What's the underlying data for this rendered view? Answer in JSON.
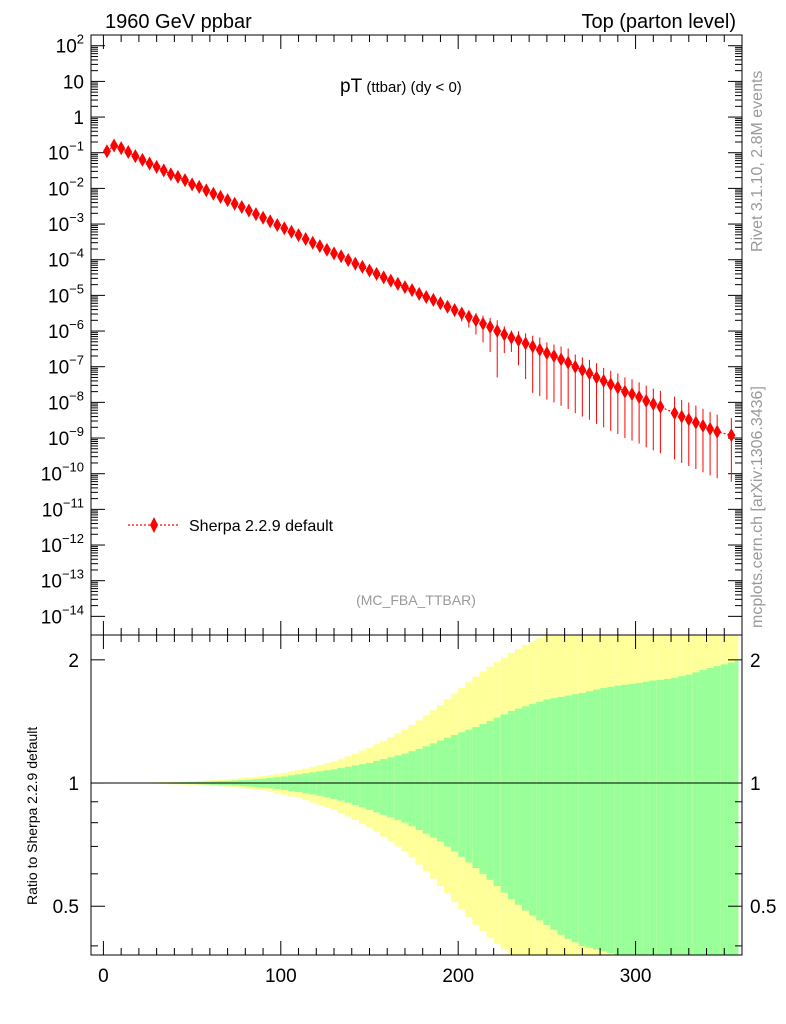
{
  "header": {
    "left": "1960 GeV ppbar",
    "right": "Top (parton level)"
  },
  "side_text": {
    "rivet": "Rivet 3.1.10,  2.8M events",
    "mcplots": "mcplots.cern.ch [arXiv:1306.3436]"
  },
  "main_title": {
    "main": "pT",
    "sub": " (ttbar)  (dy < 0)"
  },
  "analysis_tag": "(MC_FBA_TTBAR)",
  "ratio_ylabel": "Ratio to Sherpa 2.2.9 default",
  "colors": {
    "series": "#ff0000",
    "band_inner": "#99ff99",
    "band_outer": "#ffff99",
    "axis": "#000000",
    "side_text": "#999999"
  },
  "chart_data": [
    {
      "type": "line",
      "panel": "main",
      "yscale": "log",
      "xlim": [
        -7,
        360
      ],
      "ylim": [
        3e-15,
        200
      ],
      "y_tick_labels": [
        "10^-14",
        "10^-13",
        "10^-12",
        "10^-11",
        "10^-10",
        "10^-9",
        "10^-8",
        "10^-7",
        "10^-6",
        "10^-5",
        "10^-4",
        "10^-3",
        "10^-2",
        "10^-1",
        "1",
        "10",
        "10^2"
      ],
      "legend_position": "middle-left",
      "series": [
        {
          "name": "Sherpa 2.2.9 default",
          "marker": "diamond",
          "linestyle": "dotted",
          "x": [
            2,
            6,
            10,
            14,
            18,
            22,
            26,
            30,
            34,
            38,
            42,
            46,
            50,
            54,
            58,
            62,
            66,
            70,
            74,
            78,
            82,
            86,
            90,
            94,
            98,
            102,
            106,
            110,
            114,
            118,
            122,
            126,
            130,
            134,
            138,
            142,
            146,
            150,
            154,
            158,
            162,
            166,
            170,
            174,
            178,
            182,
            186,
            190,
            194,
            198,
            202,
            206,
            210,
            214,
            218,
            222,
            226,
            230,
            234,
            238,
            242,
            246,
            250,
            254,
            258,
            262,
            266,
            270,
            274,
            278,
            282,
            286,
            290,
            294,
            298,
            302,
            306,
            310,
            314,
            322,
            326,
            330,
            334,
            338,
            342,
            346,
            354
          ],
          "y": [
            0.11,
            0.16,
            0.135,
            0.105,
            0.08,
            0.063,
            0.05,
            0.04,
            0.032,
            0.025,
            0.021,
            0.017,
            0.013,
            0.011,
            0.0088,
            0.0071,
            0.0058,
            0.0047,
            0.0037,
            0.003,
            0.0024,
            0.0019,
            0.0015,
            0.0012,
            0.00094,
            0.00076,
            0.00061,
            0.00049,
            0.00038,
            0.0003,
            0.00024,
            0.00019,
            0.00015,
            0.000125,
            9.8e-05,
            7.8e-05,
            6.3e-05,
            5e-05,
            4e-05,
            3.2e-05,
            2.6e-05,
            2.1e-05,
            1.7e-05,
            1.4e-05,
            1.1e-05,
            9e-06,
            7.5e-06,
            6e-06,
            4.8e-06,
            3.9e-06,
            3.1e-06,
            2.5e-06,
            2e-06,
            1.6e-06,
            1.3e-06,
            1e-06,
            8e-07,
            6.5e-07,
            5.5e-07,
            4.5e-07,
            3.7e-07,
            3e-07,
            2.4e-07,
            2e-07,
            1.6e-07,
            1.3e-07,
            1e-07,
            8e-08,
            6.5e-08,
            5e-08,
            4e-08,
            3.2e-08,
            2.6e-08,
            2e-08,
            1.7e-08,
            1.4e-08,
            1.1e-08,
            9e-09,
            7.5e-09,
            5e-09,
            4e-09,
            3.3e-09,
            2.7e-09,
            2.2e-09,
            1.8e-09,
            1.5e-09,
            1.2e-09
          ],
          "yerr_frac": [
            0.04,
            0.04,
            0.04,
            0.04,
            0.04,
            0.04,
            0.04,
            0.04,
            0.04,
            0.04,
            0.04,
            0.04,
            0.04,
            0.04,
            0.04,
            0.05,
            0.05,
            0.05,
            0.05,
            0.05,
            0.05,
            0.05,
            0.06,
            0.06,
            0.06,
            0.06,
            0.07,
            0.07,
            0.07,
            0.08,
            0.08,
            0.08,
            0.09,
            0.09,
            0.1,
            0.1,
            0.11,
            0.12,
            0.12,
            0.13,
            0.14,
            0.15,
            0.16,
            0.17,
            0.18,
            0.2,
            0.22,
            0.25,
            0.3,
            0.35,
            0.4,
            0.5,
            0.6,
            0.7,
            0.8,
            1.0,
            0.7,
            0.6,
            0.8,
            0.9,
            1.0,
            1.2,
            1.0,
            1.1,
            1.3,
            1.5,
            1.2,
            1.3,
            1.4,
            1.5,
            1.3,
            1.4,
            1.5,
            1.5,
            1.6,
            1.6,
            1.7,
            1.7,
            1.8,
            1.9,
            1.9,
            2.0,
            2.0,
            2.0,
            2.0,
            2.0,
            2.0
          ]
        }
      ]
    },
    {
      "type": "area",
      "panel": "ratio",
      "ylim": [
        0.38,
        2.3
      ],
      "xlim": [
        -7,
        360
      ],
      "y_ticks": [
        0.5,
        1,
        2
      ],
      "y_tick_labels": [
        "0.5",
        "1",
        "2"
      ],
      "x_ticks": [
        0,
        100,
        200,
        300
      ],
      "x_tick_labels": [
        "0",
        "100",
        "200",
        "300"
      ],
      "reference_line": 1,
      "band_x": [
        0,
        10,
        20,
        30,
        40,
        50,
        60,
        70,
        80,
        90,
        100,
        110,
        120,
        130,
        140,
        150,
        160,
        170,
        180,
        190,
        200,
        210,
        220,
        230,
        240,
        250,
        260,
        270,
        280,
        290,
        300,
        310,
        320,
        330,
        340,
        350,
        360
      ],
      "inner_up": [
        1.0,
        1.0,
        1.001,
        1.002,
        1.004,
        1.006,
        1.009,
        1.013,
        1.018,
        1.025,
        1.035,
        1.05,
        1.065,
        1.08,
        1.1,
        1.12,
        1.15,
        1.18,
        1.22,
        1.27,
        1.32,
        1.37,
        1.43,
        1.5,
        1.55,
        1.6,
        1.63,
        1.66,
        1.7,
        1.73,
        1.75,
        1.78,
        1.8,
        1.84,
        1.9,
        1.95,
        2.0
      ],
      "inner_down": [
        1.0,
        1.0,
        0.999,
        0.998,
        0.996,
        0.994,
        0.991,
        0.987,
        0.982,
        0.975,
        0.965,
        0.95,
        0.935,
        0.915,
        0.89,
        0.86,
        0.83,
        0.8,
        0.76,
        0.72,
        0.67,
        0.62,
        0.57,
        0.52,
        0.48,
        0.45,
        0.42,
        0.4,
        0.39,
        0.38,
        0.37,
        0.36,
        0.36,
        0.35,
        0.35,
        0.35,
        0.35
      ],
      "outer_up": [
        1.0,
        1.0,
        1.002,
        1.004,
        1.007,
        1.01,
        1.015,
        1.02,
        1.03,
        1.04,
        1.055,
        1.075,
        1.1,
        1.13,
        1.17,
        1.22,
        1.28,
        1.35,
        1.44,
        1.55,
        1.68,
        1.82,
        1.95,
        2.08,
        2.2,
        2.3,
        2.3,
        2.3,
        2.3,
        2.3,
        2.3,
        2.3,
        2.3,
        2.3,
        2.3,
        2.3,
        2.3
      ],
      "outer_down": [
        1.0,
        1.0,
        0.998,
        0.996,
        0.993,
        0.99,
        0.985,
        0.98,
        0.97,
        0.96,
        0.94,
        0.92,
        0.89,
        0.86,
        0.82,
        0.78,
        0.73,
        0.68,
        0.62,
        0.56,
        0.5,
        0.45,
        0.41,
        0.38,
        0.37,
        0.36,
        0.35,
        0.35,
        0.35,
        0.35,
        0.35,
        0.35,
        0.35,
        0.35,
        0.35,
        0.35,
        0.35
      ]
    }
  ]
}
